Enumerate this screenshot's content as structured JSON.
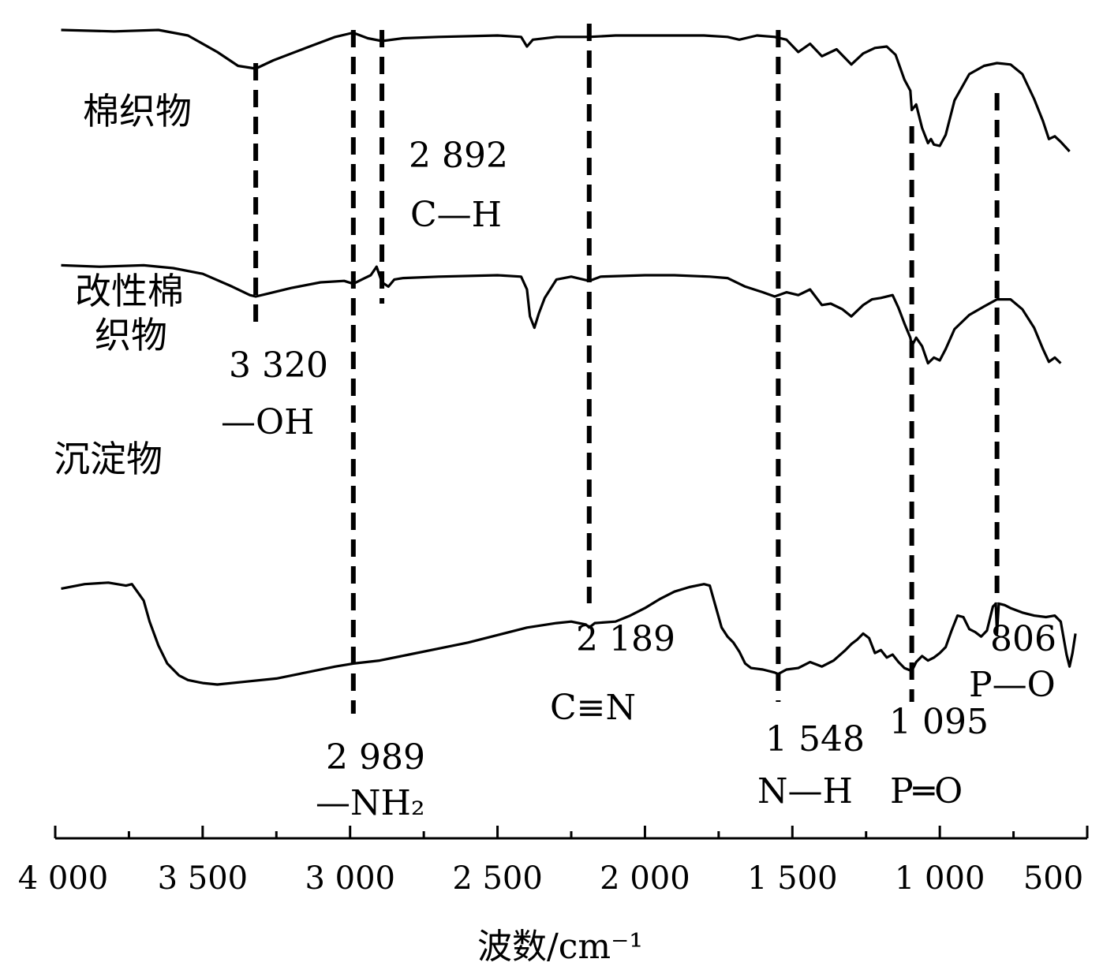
{
  "chart_data": {
    "type": "line",
    "xlabel": "波数/cm⁻¹",
    "xlim": [
      4000,
      500
    ],
    "x_reversed": true,
    "x_ticks": [
      4000,
      3500,
      3000,
      2500,
      2000,
      1500,
      1000,
      500
    ],
    "x_tick_labels": [
      "4 000",
      "3 500",
      "3 000",
      "2 500",
      "2 000",
      "1 500",
      "1 000",
      "500"
    ],
    "grid": false,
    "series": [
      {
        "name": "棉织物",
        "points": [
          [
            3980,
            96
          ],
          [
            3800,
            95
          ],
          [
            3650,
            96
          ],
          [
            3550,
            92
          ],
          [
            3450,
            80
          ],
          [
            3380,
            70
          ],
          [
            3320,
            68
          ],
          [
            3260,
            74
          ],
          [
            3150,
            83
          ],
          [
            3050,
            91
          ],
          [
            2990,
            94
          ],
          [
            2940,
            90
          ],
          [
            2892,
            88
          ],
          [
            2820,
            90
          ],
          [
            2700,
            91
          ],
          [
            2500,
            92
          ],
          [
            2420,
            91
          ],
          [
            2400,
            84
          ],
          [
            2380,
            89
          ],
          [
            2300,
            91
          ],
          [
            2189,
            91
          ],
          [
            2100,
            92
          ],
          [
            1800,
            92
          ],
          [
            1720,
            91
          ],
          [
            1680,
            89
          ],
          [
            1620,
            92
          ],
          [
            1560,
            91
          ],
          [
            1520,
            89
          ],
          [
            1480,
            80
          ],
          [
            1440,
            86
          ],
          [
            1400,
            77
          ],
          [
            1350,
            82
          ],
          [
            1300,
            71
          ],
          [
            1260,
            79
          ],
          [
            1220,
            83
          ],
          [
            1180,
            84
          ],
          [
            1150,
            78
          ],
          [
            1120,
            60
          ],
          [
            1100,
            52
          ],
          [
            1095,
            38
          ],
          [
            1080,
            42
          ],
          [
            1060,
            25
          ],
          [
            1040,
            14
          ],
          [
            1030,
            17
          ],
          [
            1020,
            13
          ],
          [
            1000,
            12
          ],
          [
            980,
            20
          ],
          [
            950,
            45
          ],
          [
            900,
            64
          ],
          [
            850,
            70
          ],
          [
            806,
            72
          ],
          [
            760,
            71
          ],
          [
            720,
            64
          ],
          [
            680,
            46
          ],
          [
            650,
            30
          ],
          [
            630,
            17
          ],
          [
            610,
            19
          ],
          [
            590,
            15
          ],
          [
            560,
            8
          ]
        ]
      },
      {
        "name": "改性棉织物",
        "points": [
          [
            3980,
            73
          ],
          [
            3850,
            72
          ],
          [
            3700,
            73
          ],
          [
            3600,
            71
          ],
          [
            3500,
            67
          ],
          [
            3400,
            58
          ],
          [
            3340,
            52
          ],
          [
            3320,
            51
          ],
          [
            3280,
            53
          ],
          [
            3200,
            57
          ],
          [
            3100,
            61
          ],
          [
            3020,
            62
          ],
          [
            2989,
            60
          ],
          [
            2950,
            64
          ],
          [
            2930,
            66
          ],
          [
            2910,
            72
          ],
          [
            2892,
            61
          ],
          [
            2870,
            58
          ],
          [
            2850,
            63
          ],
          [
            2820,
            64
          ],
          [
            2700,
            65
          ],
          [
            2500,
            66
          ],
          [
            2420,
            65
          ],
          [
            2400,
            56
          ],
          [
            2390,
            37
          ],
          [
            2375,
            29
          ],
          [
            2360,
            39
          ],
          [
            2340,
            50
          ],
          [
            2300,
            63
          ],
          [
            2250,
            65
          ],
          [
            2189,
            62
          ],
          [
            2150,
            65
          ],
          [
            2000,
            66
          ],
          [
            1900,
            66
          ],
          [
            1780,
            65
          ],
          [
            1720,
            64
          ],
          [
            1660,
            58
          ],
          [
            1600,
            54
          ],
          [
            1560,
            51
          ],
          [
            1520,
            54
          ],
          [
            1480,
            52
          ],
          [
            1440,
            56
          ],
          [
            1400,
            45
          ],
          [
            1370,
            46
          ],
          [
            1330,
            42
          ],
          [
            1300,
            37
          ],
          [
            1260,
            45
          ],
          [
            1230,
            49
          ],
          [
            1200,
            50
          ],
          [
            1160,
            52
          ],
          [
            1140,
            43
          ],
          [
            1120,
            32
          ],
          [
            1100,
            22
          ],
          [
            1095,
            16
          ],
          [
            1080,
            22
          ],
          [
            1060,
            16
          ],
          [
            1040,
            4
          ],
          [
            1020,
            8
          ],
          [
            1000,
            6
          ],
          [
            980,
            14
          ],
          [
            950,
            28
          ],
          [
            900,
            38
          ],
          [
            850,
            44
          ],
          [
            806,
            49
          ],
          [
            760,
            49
          ],
          [
            720,
            42
          ],
          [
            680,
            29
          ],
          [
            650,
            14
          ],
          [
            630,
            5
          ],
          [
            610,
            8
          ],
          [
            590,
            4
          ]
        ]
      },
      {
        "name": "沉淀物",
        "points": [
          [
            3980,
            40
          ],
          [
            3900,
            43
          ],
          [
            3820,
            44
          ],
          [
            3760,
            42
          ],
          [
            3740,
            43
          ],
          [
            3700,
            32
          ],
          [
            3680,
            18
          ],
          [
            3650,
            2
          ],
          [
            3620,
            -10
          ],
          [
            3580,
            -18
          ],
          [
            3550,
            -21
          ],
          [
            3500,
            -23
          ],
          [
            3450,
            -24
          ],
          [
            3350,
            -22
          ],
          [
            3250,
            -20
          ],
          [
            3150,
            -16
          ],
          [
            3050,
            -12
          ],
          [
            2989,
            -10
          ],
          [
            2900,
            -8
          ],
          [
            2800,
            -4
          ],
          [
            2700,
            0
          ],
          [
            2600,
            4
          ],
          [
            2500,
            9
          ],
          [
            2400,
            14
          ],
          [
            2300,
            17
          ],
          [
            2250,
            18
          ],
          [
            2200,
            16
          ],
          [
            2189,
            14
          ],
          [
            2170,
            17
          ],
          [
            2100,
            18
          ],
          [
            2050,
            22
          ],
          [
            2000,
            27
          ],
          [
            1950,
            33
          ],
          [
            1900,
            38
          ],
          [
            1850,
            41
          ],
          [
            1800,
            43
          ],
          [
            1780,
            42
          ],
          [
            1760,
            28
          ],
          [
            1740,
            14
          ],
          [
            1720,
            8
          ],
          [
            1700,
            4
          ],
          [
            1680,
            -2
          ],
          [
            1660,
            -10
          ],
          [
            1640,
            -13
          ],
          [
            1600,
            -14
          ],
          [
            1560,
            -16
          ],
          [
            1548,
            -17
          ],
          [
            1520,
            -14
          ],
          [
            1480,
            -13
          ],
          [
            1440,
            -9
          ],
          [
            1400,
            -12
          ],
          [
            1360,
            -8
          ],
          [
            1320,
            -1
          ],
          [
            1300,
            3
          ],
          [
            1280,
            6
          ],
          [
            1260,
            10
          ],
          [
            1240,
            7
          ],
          [
            1220,
            -3
          ],
          [
            1200,
            -1
          ],
          [
            1180,
            -6
          ],
          [
            1160,
            -4
          ],
          [
            1140,
            -9
          ],
          [
            1120,
            -13
          ],
          [
            1095,
            -15
          ],
          [
            1080,
            -9
          ],
          [
            1060,
            -5
          ],
          [
            1040,
            -8
          ],
          [
            1020,
            -6
          ],
          [
            1000,
            -3
          ],
          [
            980,
            1
          ],
          [
            960,
            12
          ],
          [
            940,
            22
          ],
          [
            920,
            21
          ],
          [
            900,
            13
          ],
          [
            880,
            11
          ],
          [
            860,
            8
          ],
          [
            840,
            12
          ],
          [
            820,
            28
          ],
          [
            810,
            30
          ],
          [
            806,
            10
          ],
          [
            800,
            30
          ],
          [
            780,
            29
          ],
          [
            760,
            27
          ],
          [
            720,
            24
          ],
          [
            680,
            22
          ],
          [
            640,
            21
          ],
          [
            610,
            22
          ],
          [
            590,
            18
          ],
          [
            570,
            -4
          ],
          [
            560,
            -12
          ],
          [
            550,
            -3
          ],
          [
            540,
            10
          ]
        ]
      }
    ],
    "reference_lines": [
      {
        "x": 3320,
        "label_value": "3 320",
        "label_group": "—OH"
      },
      {
        "x": 2989,
        "label_value": "2 989",
        "label_group": "—NH₂"
      },
      {
        "x": 2892,
        "label_value": "2 892",
        "label_group": "C—H"
      },
      {
        "x": 2189,
        "label_value": "2 189",
        "label_group": "C≡N"
      },
      {
        "x": 1548,
        "label_value": "1 548",
        "label_group": "N—H"
      },
      {
        "x": 1095,
        "label_value": "1 095",
        "label_group": "P═O"
      },
      {
        "x": 806,
        "label_value": "806",
        "label_group": "P—O"
      }
    ]
  }
}
